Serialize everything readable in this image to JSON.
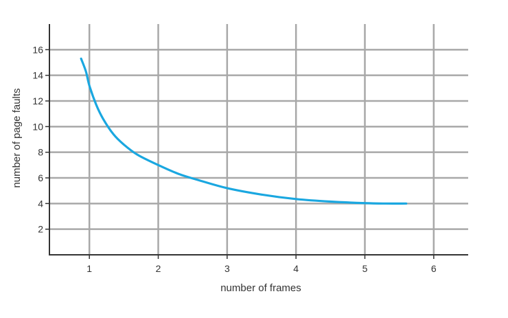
{
  "chart_data": {
    "type": "line",
    "title": "",
    "xlabel": "number of frames",
    "ylabel": "number of page faults",
    "xlim": [
      0.42,
      6.5
    ],
    "ylim": [
      0,
      18
    ],
    "x_ticks": [
      1,
      2,
      3,
      4,
      5,
      6
    ],
    "x_tick_labels": [
      "1",
      "2",
      "3",
      "4",
      "5",
      "6"
    ],
    "y_ticks": [
      2,
      4,
      6,
      8,
      10,
      12,
      14,
      16
    ],
    "y_tick_labels": [
      "2",
      "4",
      "6",
      "8",
      "10",
      "12",
      "14",
      "16"
    ],
    "grid": true,
    "colors": {
      "grid": "#a8a8a8",
      "axis": "#333333",
      "series": "#1aa7e0"
    },
    "series": [
      {
        "x": [
          0.88,
          0.95,
          1.0,
          1.1,
          1.2,
          1.35,
          1.5,
          1.7,
          2.0,
          2.3,
          2.6,
          3.0,
          3.5,
          4.0,
          4.5,
          5.0,
          5.3,
          5.6
        ],
        "y": [
          15.3,
          14.3,
          13.2,
          11.7,
          10.6,
          9.4,
          8.6,
          7.8,
          7.0,
          6.3,
          5.8,
          5.2,
          4.7,
          4.35,
          4.15,
          4.03,
          4.0,
          4.0
        ]
      }
    ]
  }
}
